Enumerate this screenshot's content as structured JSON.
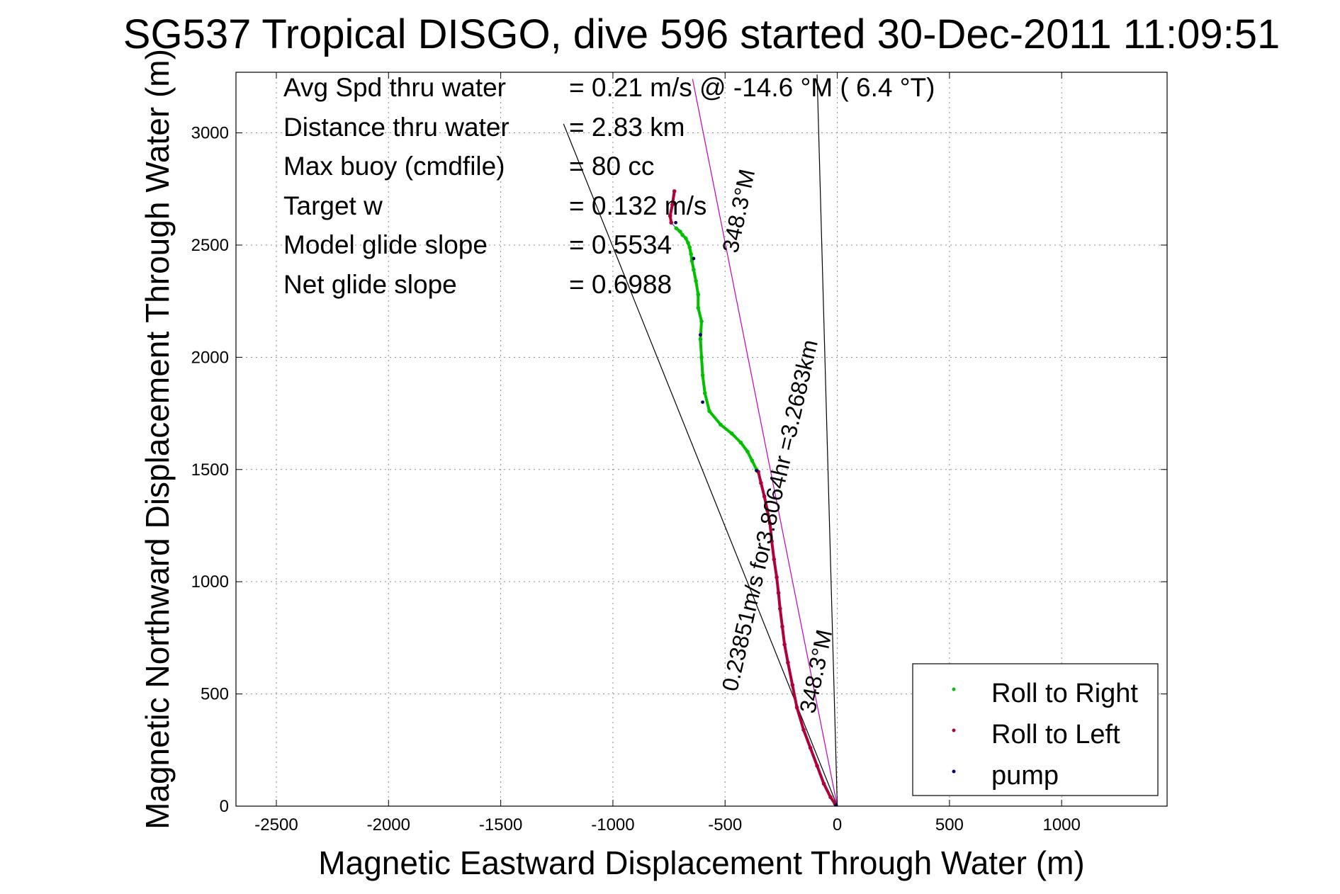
{
  "chart_data": {
    "type": "line",
    "title": "SG537 Tropical DISGO, dive 596 started 30-Dec-2011 11:09:51",
    "xlabel": "Magnetic Eastward Displacement Through Water (m)",
    "ylabel": "Magnetic Northward Displacement Through Water (m)",
    "xlim": [
      -2680,
      1470
    ],
    "ylim": [
      0,
      3270
    ],
    "xticks": [
      -2500,
      -2000,
      -1500,
      -1000,
      -500,
      0,
      500,
      1000
    ],
    "yticks": [
      0,
      500,
      1000,
      1500,
      2000,
      2500,
      3000
    ],
    "grid": true,
    "legend_position": "bottom-right",
    "stats": [
      {
        "label": "Avg Spd thru water",
        "value": "=  0.21 m/s @ -14.6 °M (  6.4 °T)"
      },
      {
        "label": "Distance thru water",
        "value": "=  2.83 km"
      },
      {
        "label": "Max buoy (cmdfile)",
        "value": "= 80 cc"
      },
      {
        "label": "Target w",
        "value": "= 0.132 m/s"
      },
      {
        "label": "Model glide slope",
        "value": "= 0.5534"
      },
      {
        "label": "Net glide slope",
        "value": "= 0.6988"
      }
    ],
    "annotations": [
      {
        "text": "0.23851m/s for3.8064hr =3.2683km"
      },
      {
        "text": "348.3°M"
      },
      {
        "text": "348.3°M"
      }
    ],
    "reference_lines": [
      {
        "name": "glide cone left",
        "x": [
          0,
          -1220
        ],
        "y": [
          0,
          3040
        ]
      },
      {
        "name": "glide cone right",
        "x": [
          0,
          -90
        ],
        "y": [
          0,
          3260
        ]
      },
      {
        "name": "heading 348.3°M",
        "color": "#c000c0",
        "x": [
          0,
          -645
        ],
        "y": [
          0,
          3240
        ]
      }
    ],
    "series": [
      {
        "name": "Roll to Right",
        "color": "#00c000",
        "x": [
          -360,
          -380,
          -400,
          -430,
          -470,
          -520,
          -570,
          -590,
          -600,
          -605,
          -610,
          -605,
          -620,
          -620,
          -630,
          -640,
          -648,
          -652,
          -658,
          -665,
          -675,
          -690,
          -700,
          -718
        ],
        "y": [
          1500,
          1540,
          1580,
          1620,
          1660,
          1700,
          1760,
          1840,
          1920,
          2000,
          2080,
          2160,
          2220,
          2280,
          2340,
          2390,
          2430,
          2460,
          2490,
          2510,
          2530,
          2545,
          2560,
          2575
        ]
      },
      {
        "name": "Roll to Left",
        "color": "#b0003a",
        "x": [
          -10,
          -30,
          -60,
          -90,
          -120,
          -150,
          -180,
          -200,
          -220,
          -235,
          -245,
          -255,
          -262,
          -270,
          -282,
          -292,
          -300,
          -312,
          -325,
          -340,
          -352,
          -740,
          -745,
          -735,
          -726
        ],
        "y": [
          10,
          40,
          100,
          180,
          260,
          340,
          440,
          540,
          640,
          720,
          800,
          880,
          950,
          1020,
          1100,
          1180,
          1260,
          1320,
          1380,
          1440,
          1490,
          2600,
          2630,
          2680,
          2740
        ]
      },
      {
        "name": "pump",
        "color": "#000060",
        "x": [
          -5,
          -360,
          -600,
          -610,
          -640,
          -720
        ],
        "y": [
          5,
          1495,
          1800,
          2100,
          2440,
          2600
        ]
      }
    ]
  }
}
